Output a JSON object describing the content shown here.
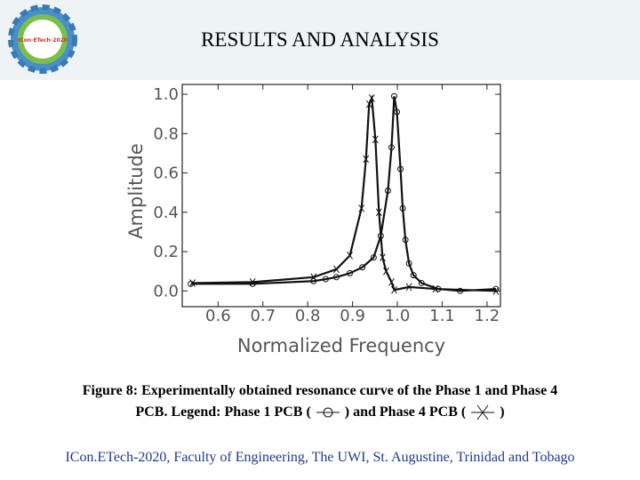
{
  "header": {
    "title": "RESULTS AND ANALYSIS",
    "logo_text": "ICon-ETech-2020"
  },
  "caption": [
    "Figure 8: Experimentally obtained resonance curve of the Phase 1 and Phase 4",
    "PCB. Legend:",
    "(",
    ") and",
    "(",
    ")"
  ],
  "footer": "ICon.ETech-2020, Faculty of Engineering, The UWI, St. Augustine, Trinidad and Tobago",
  "chart_data": {
    "type": "line",
    "xlabel": "Normalized Frequency",
    "ylabel": "Amplitude",
    "xlim": [
      0.52,
      1.23
    ],
    "ylim": [
      -0.08,
      1.05
    ],
    "xticks": [
      0.6,
      0.7,
      0.8,
      0.9,
      {
        "value": 1.0,
        "label": "1.0"
      },
      1.1,
      1.2
    ],
    "yticks": [
      {
        "value": 0,
        "label": "0.0"
      },
      0.2,
      0.4,
      0.6,
      0.8,
      {
        "value": 1.0,
        "label": "1.0"
      }
    ],
    "series": [
      {
        "name": "Phase 1 PCB",
        "color": "#111111",
        "marker": "circle",
        "x": [
          0.539,
          0.677,
          0.813,
          0.84,
          0.864,
          0.894,
          0.922,
          0.947,
          0.963,
          0.979,
          0.987,
          0.993,
          0.999,
          1.007,
          1.012,
          1.018,
          1.026,
          1.036,
          1.054,
          1.091,
          1.14,
          1.22
        ],
        "values": [
          0.036,
          0.036,
          0.05,
          0.06,
          0.07,
          0.09,
          0.12,
          0.17,
          0.28,
          0.51,
          0.73,
          0.99,
          0.91,
          0.62,
          0.42,
          0.26,
          0.14,
          0.08,
          0.04,
          0.01,
          0,
          0.01
        ]
      },
      {
        "name": "Phase 4 PCB",
        "color": "#111111",
        "marker": "cross",
        "x": [
          0.543,
          0.677,
          0.813,
          0.864,
          0.894,
          0.92,
          0.93,
          0.937,
          0.943,
          0.951,
          0.959,
          0.967,
          0.975,
          0.987,
          0.993,
          1.026,
          1.085,
          1.22
        ],
        "values": [
          0.04,
          0.045,
          0.07,
          0.11,
          0.18,
          0.42,
          0.67,
          0.95,
          0.98,
          0.77,
          0.4,
          0.17,
          0.1,
          0.045,
          0.005,
          0.02,
          0.01,
          0
        ]
      }
    ]
  }
}
